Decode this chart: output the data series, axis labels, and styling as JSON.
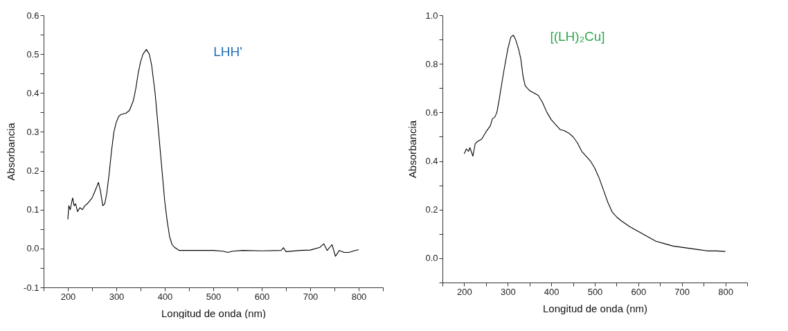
{
  "chart_data": [
    {
      "type": "line",
      "title": "LHH'",
      "xlabel": "Longitud de onda (nm)",
      "ylabel": "Absorbancia",
      "color": "#000000",
      "x": [
        200,
        202,
        205,
        208,
        210,
        213,
        216,
        220,
        225,
        230,
        235,
        240,
        250,
        255,
        260,
        263,
        267,
        272,
        276,
        280,
        285,
        290,
        295,
        300,
        305,
        310,
        320,
        327,
        335,
        340,
        345,
        350,
        355,
        362,
        368,
        373,
        380,
        385,
        390,
        395,
        400,
        405,
        410,
        415,
        420,
        430,
        450,
        500,
        520,
        530,
        540,
        560,
        600,
        640,
        645,
        650,
        680,
        700,
        720,
        728,
        735,
        745,
        752,
        760,
        770,
        780,
        790,
        800
      ],
      "values": [
        0.075,
        0.11,
        0.1,
        0.12,
        0.13,
        0.11,
        0.115,
        0.095,
        0.105,
        0.1,
        0.11,
        0.115,
        0.13,
        0.145,
        0.16,
        0.17,
        0.15,
        0.11,
        0.115,
        0.14,
        0.19,
        0.25,
        0.3,
        0.325,
        0.34,
        0.345,
        0.348,
        0.355,
        0.38,
        0.41,
        0.45,
        0.48,
        0.5,
        0.512,
        0.5,
        0.47,
        0.4,
        0.33,
        0.26,
        0.19,
        0.12,
        0.07,
        0.03,
        0.01,
        0.003,
        -0.005,
        -0.005,
        -0.005,
        -0.007,
        -0.01,
        -0.007,
        -0.005,
        -0.006,
        -0.005,
        0.002,
        -0.008,
        -0.005,
        -0.004,
        0.003,
        0.012,
        -0.005,
        0.01,
        -0.02,
        -0.005,
        -0.01,
        -0.01,
        -0.006,
        -0.003
      ],
      "xlim": [
        150,
        850
      ],
      "xticks": [
        {
          "value": 150,
          "label": null
        },
        200,
        {
          "value": 250,
          "label": null
        },
        300,
        {
          "value": 350,
          "label": null
        },
        400,
        {
          "value": 450,
          "label": null
        },
        500,
        {
          "value": 550,
          "label": null
        },
        600,
        {
          "value": 650,
          "label": null
        },
        700,
        {
          "value": 750,
          "label": null
        },
        800,
        {
          "value": 850,
          "label": null
        }
      ],
      "ylim": [
        -0.1,
        0.6
      ],
      "yticks": [
        -0.1,
        {
          "value": -0.05,
          "label": null
        },
        {
          "value": 0,
          "label": "0.0"
        },
        {
          "value": 0.05,
          "label": null
        },
        0.1,
        {
          "value": 0.15,
          "label": null
        },
        0.2,
        {
          "value": 0.25,
          "label": null
        },
        0.3,
        {
          "value": 0.35,
          "label": null
        },
        0.4,
        {
          "value": 0.45,
          "label": null
        },
        0.5,
        {
          "value": 0.55,
          "label": null
        },
        0.6
      ],
      "grid": false
    },
    {
      "type": "line",
      "title": "[(LH)₂Cu]",
      "xlabel": "Longitud de onda (nm)",
      "ylabel": "Absorbancia",
      "color": "#000000",
      "x": [
        200,
        205,
        210,
        213,
        218,
        220,
        225,
        230,
        240,
        250,
        260,
        265,
        270,
        275,
        280,
        290,
        300,
        307,
        313,
        318,
        325,
        330,
        335,
        340,
        350,
        360,
        370,
        380,
        390,
        400,
        410,
        420,
        430,
        440,
        450,
        460,
        470,
        480,
        490,
        500,
        510,
        520,
        530,
        540,
        550,
        560,
        580,
        600,
        620,
        640,
        660,
        680,
        700,
        720,
        740,
        760,
        780,
        800
      ],
      "values": [
        0.43,
        0.45,
        0.44,
        0.455,
        0.43,
        0.42,
        0.47,
        0.48,
        0.49,
        0.52,
        0.545,
        0.575,
        0.58,
        0.6,
        0.65,
        0.76,
        0.86,
        0.91,
        0.918,
        0.9,
        0.86,
        0.82,
        0.75,
        0.71,
        0.69,
        0.68,
        0.67,
        0.64,
        0.6,
        0.57,
        0.55,
        0.53,
        0.525,
        0.515,
        0.5,
        0.475,
        0.44,
        0.42,
        0.4,
        0.37,
        0.33,
        0.28,
        0.23,
        0.19,
        0.17,
        0.155,
        0.13,
        0.11,
        0.09,
        0.07,
        0.06,
        0.05,
        0.045,
        0.04,
        0.035,
        0.03,
        0.03,
        0.028
      ],
      "xlim": [
        150,
        850
      ],
      "xticks": [
        {
          "value": 150,
          "label": null
        },
        200,
        {
          "value": 250,
          "label": null
        },
        300,
        {
          "value": 350,
          "label": null
        },
        400,
        {
          "value": 450,
          "label": null
        },
        500,
        {
          "value": 550,
          "label": null
        },
        600,
        {
          "value": 650,
          "label": null
        },
        700,
        {
          "value": 750,
          "label": null
        },
        800,
        {
          "value": 850,
          "label": null
        }
      ],
      "ylim": [
        -0.1,
        1.0
      ],
      "yticks": [
        {
          "value": -0.1,
          "label": null
        },
        {
          "value": 0,
          "label": "0.0"
        },
        {
          "value": 0.1,
          "label": null
        },
        0.2,
        {
          "value": 0.3,
          "label": null
        },
        0.4,
        {
          "value": 0.5,
          "label": null
        },
        0.6,
        {
          "value": 0.7,
          "label": null
        },
        0.8,
        {
          "value": 0.9,
          "label": null
        },
        {
          "value": 1,
          "label": "1.0"
        }
      ],
      "grid": false
    }
  ]
}
